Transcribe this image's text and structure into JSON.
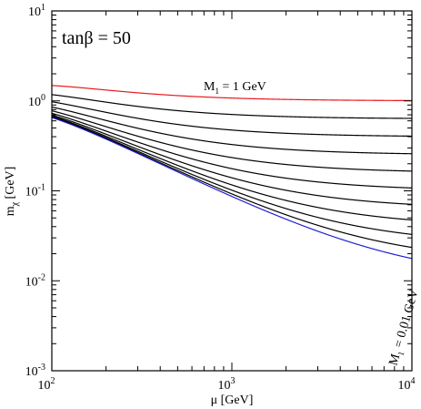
{
  "chart_data": {
    "type": "line",
    "xlabel": "μ [GeV]",
    "ylabel": "m",
    "ylabel_sub": "χ",
    "ylabel_unit": " [GeV]",
    "xscale": "log",
    "yscale": "log",
    "xlim": [
      100,
      10000
    ],
    "ylim": [
      0.001,
      10
    ],
    "x_ticks": [
      {
        "value": 100,
        "base": "10",
        "exp": "2"
      },
      {
        "value": 1000,
        "base": "10",
        "exp": "3"
      },
      {
        "value": 10000,
        "base": "10",
        "exp": "4"
      }
    ],
    "y_ticks": [
      {
        "value": 0.001,
        "base": "10",
        "exp": "-3"
      },
      {
        "value": 0.01,
        "base": "10",
        "exp": "-2"
      },
      {
        "value": 0.1,
        "base": "10",
        "exp": "-1"
      },
      {
        "value": 1,
        "base": "10",
        "exp": "0"
      },
      {
        "value": 10,
        "base": "10",
        "exp": "1"
      }
    ],
    "grid": false,
    "annotation_tanb": "tanβ = 50",
    "annotation_top": {
      "main": "M",
      "sub": "1",
      "rest": " = 1 GeV",
      "color": "#e8191e"
    },
    "annotation_bottom": {
      "main": "M",
      "sub": "1",
      "rest": " = 0.01 GeV",
      "color": "#1f1fd6"
    },
    "tan_beta": 50,
    "M1_values": [
      1,
      0.631,
      0.398,
      0.251,
      0.158,
      0.1,
      0.0631,
      0.0398,
      0.0251,
      0.0158,
      0.01
    ],
    "series_colors": [
      "#e8191e",
      "#000000",
      "#000000",
      "#000000",
      "#000000",
      "#000000",
      "#000000",
      "#000000",
      "#000000",
      "#000000",
      "#1f1fd6"
    ]
  }
}
